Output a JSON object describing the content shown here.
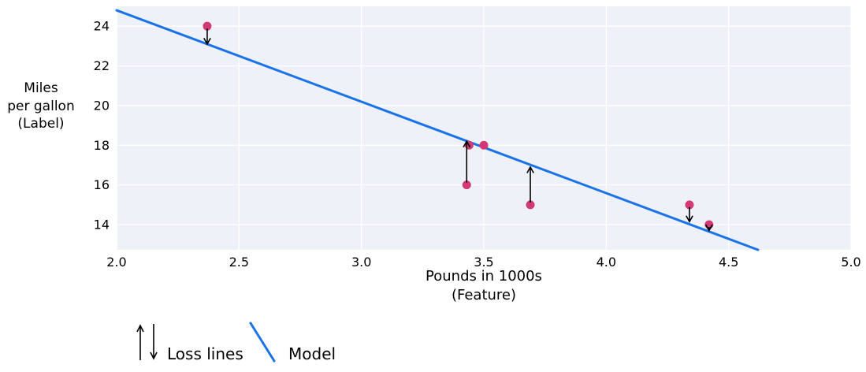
{
  "colors": {
    "plot_bg": "#eef1f8",
    "grid": "#ffffff",
    "model_line": "#1a73e8",
    "point": "#d33a75",
    "arrow": "#000000",
    "text": "#000000"
  },
  "chart_data": {
    "type": "scatter",
    "title": "",
    "xlabel_lines": [
      "Pounds in 1000s",
      "(Feature)"
    ],
    "ylabel_lines": [
      "Miles",
      "per gallon",
      "(Label)"
    ],
    "x_domain": [
      2.0,
      5.0
    ],
    "y_domain": [
      12.73,
      25.0
    ],
    "x_ticks": [
      2.0,
      2.5,
      3.0,
      3.5,
      4.0,
      4.5,
      5.0
    ],
    "x_tick_labels": [
      "2.0",
      "2.5",
      "3.0",
      "3.5",
      "4.0",
      "4.5",
      "5.0"
    ],
    "y_ticks": [
      14,
      16,
      18,
      20,
      22,
      24
    ],
    "y_tick_labels": [
      "14",
      "16",
      "18",
      "20",
      "22",
      "24"
    ],
    "grid": true,
    "legend_position": "bottom-left",
    "points": [
      {
        "x": 2.37,
        "y": 24
      },
      {
        "x": 3.44,
        "y": 18
      },
      {
        "x": 3.5,
        "y": 18
      },
      {
        "x": 3.43,
        "y": 16
      },
      {
        "x": 3.69,
        "y": 15
      },
      {
        "x": 4.34,
        "y": 15
      },
      {
        "x": 4.42,
        "y": 14
      }
    ],
    "model_line": {
      "x1": 2.0,
      "y1": 24.8,
      "x2": 4.62,
      "y2": 12.73
    },
    "loss_lines": [
      {
        "x": 2.37,
        "from_y": 24,
        "to_y": 23.1,
        "direction": "down"
      },
      {
        "x": 3.43,
        "from_y": 16,
        "to_y": 18.2,
        "direction": "up"
      },
      {
        "x": 3.69,
        "from_y": 15,
        "to_y": 16.9,
        "direction": "up"
      },
      {
        "x": 4.34,
        "from_y": 15,
        "to_y": 14.15,
        "direction": "down"
      },
      {
        "x": 4.42,
        "from_y": 14,
        "to_y": 13.7,
        "direction": "down"
      }
    ]
  },
  "legend": {
    "loss_label": "Loss lines",
    "model_label": "Model"
  }
}
